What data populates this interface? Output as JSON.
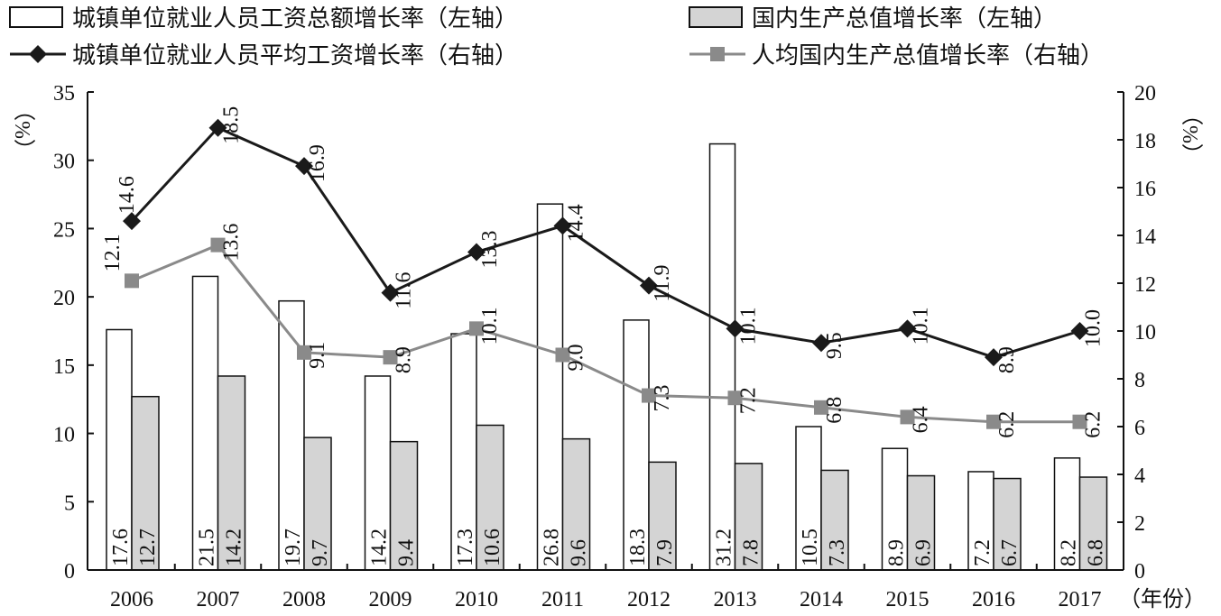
{
  "chart_data": {
    "type": "bar+line",
    "categories": [
      "2006",
      "2007",
      "2008",
      "2009",
      "2010",
      "2011",
      "2012",
      "2013",
      "2014",
      "2015",
      "2016",
      "2017"
    ],
    "xlabel": "（年份）",
    "ylabel_left": "（%）",
    "ylabel_right": "（%）",
    "ylim_left": [
      0,
      35
    ],
    "ylim_right": [
      0,
      20
    ],
    "yticks_left": [
      0,
      5,
      10,
      15,
      20,
      25,
      30,
      35
    ],
    "yticks_right": [
      0,
      2,
      4,
      6,
      8,
      10,
      12,
      14,
      16,
      18,
      20
    ],
    "grid": false,
    "legend_position": "top",
    "series": [
      {
        "name": "城镇单位就业人员工资总额增长率（左轴）",
        "type": "bar",
        "axis": "left",
        "color": "#ffffff",
        "values": [
          17.6,
          21.5,
          19.7,
          14.2,
          17.3,
          26.8,
          18.3,
          31.2,
          10.5,
          8.9,
          7.2,
          8.2
        ]
      },
      {
        "name": "国内生产总值增长率（左轴）",
        "type": "bar",
        "axis": "left",
        "color": "#d4d4d4",
        "values": [
          12.7,
          14.2,
          9.7,
          9.4,
          10.6,
          9.6,
          7.9,
          7.8,
          7.3,
          6.9,
          6.7,
          6.8
        ]
      },
      {
        "name": "城镇单位就业人员平均工资增长率（右轴）",
        "type": "line",
        "axis": "right",
        "color": "#1a1a1a",
        "marker": "diamond",
        "values": [
          14.6,
          18.5,
          16.9,
          11.6,
          13.3,
          14.4,
          11.9,
          10.1,
          9.5,
          10.1,
          8.9,
          10.0
        ]
      },
      {
        "name": "人均国内生产总值增长率（右轴）",
        "type": "line",
        "axis": "right",
        "color": "#8a8a8a",
        "marker": "square",
        "values": [
          12.1,
          13.6,
          9.1,
          8.9,
          10.1,
          9.0,
          7.3,
          7.2,
          6.8,
          6.4,
          6.2,
          6.2
        ]
      }
    ]
  }
}
